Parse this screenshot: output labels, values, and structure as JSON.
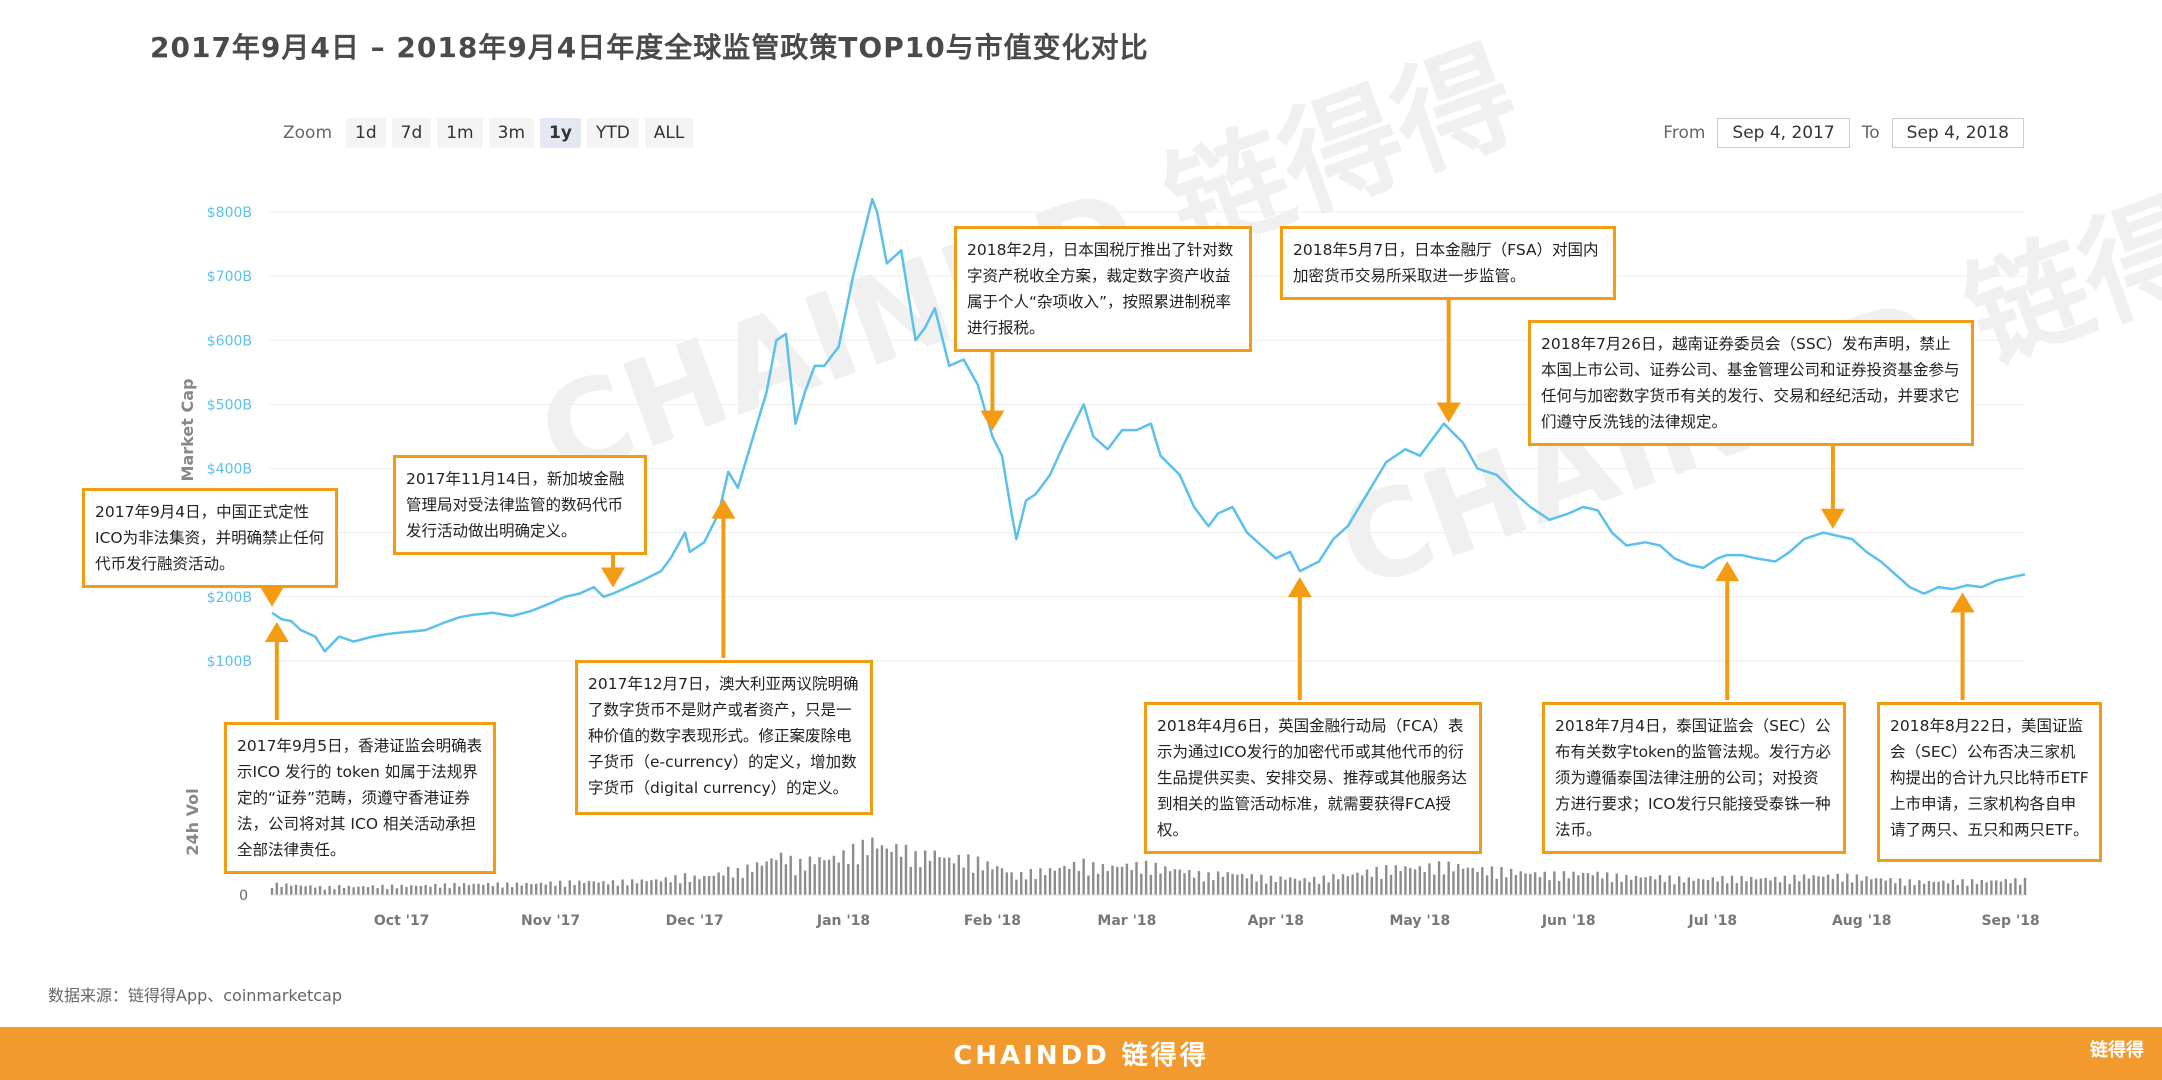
{
  "title": "2017年9月4日 – 2018年9月4日年度全球监管政策TOP10与市值变化对比",
  "zoom": {
    "label": "Zoom",
    "buttons": [
      "1d",
      "7d",
      "1m",
      "3m",
      "1y",
      "YTD",
      "ALL"
    ],
    "active": "1y"
  },
  "range": {
    "from_label": "From",
    "from_value": "Sep 4, 2017",
    "to_label": "To",
    "to_value": "Sep 4, 2018"
  },
  "source_note": "数据来源：链得得App、coinmarketcap",
  "footer_brand": "CHAINDD 链得得",
  "footer_logo": "链得得",
  "watermark": "CHAINDD 链得得",
  "colors": {
    "line": "#5bc0eb",
    "volume": "#8c8c8c",
    "accent": "#f39c12",
    "footer": "#f29a2e"
  },
  "annotations": [
    {
      "date": "2017-09-04",
      "dir": "down",
      "text": "2017年9月4日，中国正式定性ICO为非法集资，并明确禁止任何代币发行融资活动。"
    },
    {
      "date": "2017-09-05",
      "dir": "up",
      "text": "2017年9月5日，香港证监会明确表示ICO 发行的 token 如属于法规界定的“证券”范畴，须遵守香港证券法，公司将对其 ICO 相关活动承担全部法律责任。"
    },
    {
      "date": "2017-11-14",
      "dir": "down",
      "text": "2017年11月14日，新加坡金融管理局对受法律监管的数码代币发行活动做出明确定义。"
    },
    {
      "date": "2017-12-07",
      "dir": "up",
      "text": "2017年12月7日，澳大利亚两议院明确了数字货币不是财产或者资产，只是一种价值的数字表现形式。修正案废除电子货币（e-currency）的定义，增加数字货币（digital currency）的定义。"
    },
    {
      "date": "2018-02-01",
      "dir": "down",
      "text": "2018年2月，日本国税厅推出了针对数字资产税收全方案，裁定数字资产收益属于个人“杂项收入”，按照累进制税率进行报税。"
    },
    {
      "date": "2018-04-06",
      "dir": "up",
      "text": "2018年4月6日，英国金融行动局（FCA）表示为通过ICO发行的加密代币或其他代币的衍生品提供买卖、安排交易、推荐或其他服务达到相关的监管活动标准，就需要获得FCA授权。"
    },
    {
      "date": "2018-05-07",
      "dir": "down",
      "text": "2018年5月7日，日本金融厅（FSA）对国内加密货币交易所采取进一步监管。"
    },
    {
      "date": "2018-07-04",
      "dir": "up",
      "text": "2018年7月4日，泰国证监会（SEC）公布有关数字token的监管法规。发行方必须为遵循泰国法律注册的公司；对投资方进行要求；ICO发行只能接受泰铢一种法币。"
    },
    {
      "date": "2018-07-26",
      "dir": "down",
      "text": "2018年7月26日，越南证券委员会（SSC）发布声明，禁止本国上市公司、证券公司、基金管理公司和证券投资基金参与任何与加密数字货币有关的发行、交易和经纪活动，并要求它们遵守反洗钱的法律规定。"
    },
    {
      "date": "2018-08-22",
      "dir": "up",
      "text": "2018年8月22日，美国证监会（SEC）公布否决三家机构提出的合计九只比特币ETF上市申请，三家机构各自申请了两只、五只和两只ETF。"
    }
  ],
  "chart_data": {
    "type": "line",
    "title": "2017年9月4日 – 2018年9月4日年度全球监管政策TOP10与市值变化对比",
    "ylabel": "Market Cap",
    "y2label": "24h Vol",
    "yticks": [
      "$100B",
      "$200B",
      "$300B",
      "$400B",
      "$500B",
      "$600B",
      "$700B",
      "$800B"
    ],
    "ylim": [
      0,
      850
    ],
    "xticks": [
      {
        "label": "Oct '17",
        "date": "2017-10-01"
      },
      {
        "label": "Nov '17",
        "date": "2017-11-01"
      },
      {
        "label": "Dec '17",
        "date": "2017-12-01"
      },
      {
        "label": "Jan '18",
        "date": "2018-01-01"
      },
      {
        "label": "Feb '18",
        "date": "2018-02-01"
      },
      {
        "label": "Mar '18",
        "date": "2018-03-01"
      },
      {
        "label": "Apr '18",
        "date": "2018-04-01"
      },
      {
        "label": "May '18",
        "date": "2018-05-01"
      },
      {
        "label": "Jun '18",
        "date": "2018-06-01"
      },
      {
        "label": "Jul '18",
        "date": "2018-07-01"
      },
      {
        "label": "Aug '18",
        "date": "2018-08-01"
      },
      {
        "label": "Sep '18",
        "date": "2018-09-01"
      }
    ],
    "vol_zero_label": "0",
    "series": [
      {
        "name": "Market Cap",
        "unit": "$B",
        "points": [
          [
            "2017-09-04",
            175
          ],
          [
            "2017-09-06",
            165
          ],
          [
            "2017-09-08",
            162
          ],
          [
            "2017-09-10",
            148
          ],
          [
            "2017-09-13",
            138
          ],
          [
            "2017-09-15",
            115
          ],
          [
            "2017-09-18",
            138
          ],
          [
            "2017-09-21",
            130
          ],
          [
            "2017-09-25",
            138
          ],
          [
            "2017-09-28",
            142
          ],
          [
            "2017-10-02",
            145
          ],
          [
            "2017-10-06",
            148
          ],
          [
            "2017-10-10",
            160
          ],
          [
            "2017-10-13",
            168
          ],
          [
            "2017-10-16",
            172
          ],
          [
            "2017-10-20",
            175
          ],
          [
            "2017-10-24",
            170
          ],
          [
            "2017-10-28",
            178
          ],
          [
            "2017-11-01",
            190
          ],
          [
            "2017-11-04",
            200
          ],
          [
            "2017-11-07",
            205
          ],
          [
            "2017-11-10",
            215
          ],
          [
            "2017-11-12",
            200
          ],
          [
            "2017-11-14",
            205
          ],
          [
            "2017-11-17",
            215
          ],
          [
            "2017-11-20",
            225
          ],
          [
            "2017-11-24",
            240
          ],
          [
            "2017-11-26",
            260
          ],
          [
            "2017-11-29",
            300
          ],
          [
            "2017-11-30",
            270
          ],
          [
            "2017-12-03",
            285
          ],
          [
            "2017-12-06",
            330
          ],
          [
            "2017-12-08",
            395
          ],
          [
            "2017-12-10",
            370
          ],
          [
            "2017-12-12",
            420
          ],
          [
            "2017-12-14",
            470
          ],
          [
            "2017-12-16",
            520
          ],
          [
            "2017-12-18",
            600
          ],
          [
            "2017-12-20",
            610
          ],
          [
            "2017-12-22",
            470
          ],
          [
            "2017-12-24",
            520
          ],
          [
            "2017-12-26",
            560
          ],
          [
            "2017-12-28",
            560
          ],
          [
            "2017-12-31",
            590
          ],
          [
            "2018-01-03",
            700
          ],
          [
            "2018-01-05",
            760
          ],
          [
            "2018-01-07",
            820
          ],
          [
            "2018-01-08",
            800
          ],
          [
            "2018-01-10",
            720
          ],
          [
            "2018-01-13",
            740
          ],
          [
            "2018-01-16",
            600
          ],
          [
            "2018-01-18",
            620
          ],
          [
            "2018-01-20",
            650
          ],
          [
            "2018-01-23",
            560
          ],
          [
            "2018-01-26",
            570
          ],
          [
            "2018-01-29",
            530
          ],
          [
            "2018-02-01",
            450
          ],
          [
            "2018-02-03",
            420
          ],
          [
            "2018-02-05",
            330
          ],
          [
            "2018-02-06",
            290
          ],
          [
            "2018-02-08",
            350
          ],
          [
            "2018-02-10",
            360
          ],
          [
            "2018-02-13",
            390
          ],
          [
            "2018-02-16",
            440
          ],
          [
            "2018-02-20",
            500
          ],
          [
            "2018-02-22",
            450
          ],
          [
            "2018-02-25",
            430
          ],
          [
            "2018-02-28",
            460
          ],
          [
            "2018-03-03",
            460
          ],
          [
            "2018-03-06",
            470
          ],
          [
            "2018-03-08",
            420
          ],
          [
            "2018-03-12",
            390
          ],
          [
            "2018-03-15",
            340
          ],
          [
            "2018-03-18",
            310
          ],
          [
            "2018-03-20",
            330
          ],
          [
            "2018-03-23",
            340
          ],
          [
            "2018-03-26",
            300
          ],
          [
            "2018-03-29",
            280
          ],
          [
            "2018-04-01",
            260
          ],
          [
            "2018-04-04",
            270
          ],
          [
            "2018-04-06",
            240
          ],
          [
            "2018-04-10",
            255
          ],
          [
            "2018-04-13",
            290
          ],
          [
            "2018-04-16",
            310
          ],
          [
            "2018-04-20",
            360
          ],
          [
            "2018-04-24",
            410
          ],
          [
            "2018-04-28",
            430
          ],
          [
            "2018-05-01",
            420
          ],
          [
            "2018-05-04",
            450
          ],
          [
            "2018-05-06",
            470
          ],
          [
            "2018-05-10",
            440
          ],
          [
            "2018-05-13",
            400
          ],
          [
            "2018-05-17",
            390
          ],
          [
            "2018-05-21",
            360
          ],
          [
            "2018-05-24",
            340
          ],
          [
            "2018-05-28",
            320
          ],
          [
            "2018-06-01",
            330
          ],
          [
            "2018-06-04",
            340
          ],
          [
            "2018-06-07",
            335
          ],
          [
            "2018-06-10",
            300
          ],
          [
            "2018-06-13",
            280
          ],
          [
            "2018-06-17",
            285
          ],
          [
            "2018-06-20",
            280
          ],
          [
            "2018-06-23",
            260
          ],
          [
            "2018-06-26",
            250
          ],
          [
            "2018-06-29",
            245
          ],
          [
            "2018-07-02",
            260
          ],
          [
            "2018-07-04",
            265
          ],
          [
            "2018-07-07",
            265
          ],
          [
            "2018-07-10",
            260
          ],
          [
            "2018-07-14",
            255
          ],
          [
            "2018-07-17",
            270
          ],
          [
            "2018-07-20",
            290
          ],
          [
            "2018-07-24",
            300
          ],
          [
            "2018-07-27",
            295
          ],
          [
            "2018-07-30",
            290
          ],
          [
            "2018-08-02",
            270
          ],
          [
            "2018-08-05",
            255
          ],
          [
            "2018-08-08",
            235
          ],
          [
            "2018-08-11",
            215
          ],
          [
            "2018-08-14",
            205
          ],
          [
            "2018-08-17",
            215
          ],
          [
            "2018-08-20",
            212
          ],
          [
            "2018-08-23",
            218
          ],
          [
            "2018-08-26",
            215
          ],
          [
            "2018-08-29",
            225
          ],
          [
            "2018-09-01",
            230
          ],
          [
            "2018-09-04",
            235
          ]
        ]
      }
    ]
  }
}
